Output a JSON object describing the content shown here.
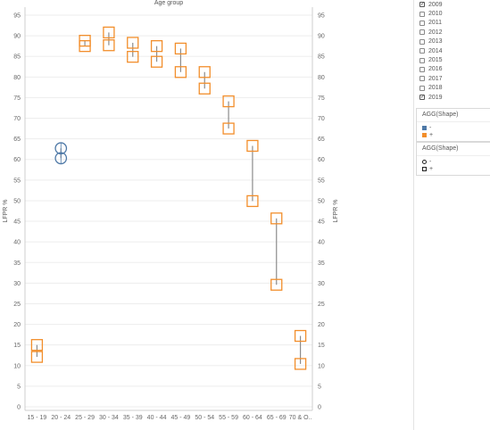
{
  "chart_data": {
    "type": "scatter",
    "title": "Age group",
    "ylabel": "LFPR %",
    "ylabel_right": "LFPR %",
    "ylim": [
      0,
      95
    ],
    "yticks": [
      0,
      5,
      10,
      15,
      20,
      25,
      30,
      35,
      40,
      45,
      50,
      55,
      60,
      65,
      70,
      75,
      80,
      85,
      90,
      95
    ],
    "categories": [
      "15 - 19",
      "20 - 24",
      "25 - 29",
      "30 - 34",
      "35 - 39",
      "40 - 44",
      "45 - 49",
      "50 - 54",
      "55 - 59",
      "60 - 64",
      "65 - 69",
      "70 & O.."
    ],
    "series": [
      {
        "shape": "circle",
        "color": "#4e79a7",
        "points": [
          {
            "category": "20 - 24",
            "y": 62.7
          },
          {
            "category": "20 - 24",
            "y": 60.3
          }
        ]
      },
      {
        "shape": "square",
        "color": "#f28e2b",
        "points": [
          {
            "category": "15 - 19",
            "y": 15.0
          },
          {
            "category": "15 - 19",
            "y": 12.1
          },
          {
            "category": "25 - 29",
            "y": 88.8
          },
          {
            "category": "25 - 29",
            "y": 87.5
          },
          {
            "category": "30 - 34",
            "y": 90.8
          },
          {
            "category": "30 - 34",
            "y": 87.7
          },
          {
            "category": "35 - 39",
            "y": 88.3
          },
          {
            "category": "35 - 39",
            "y": 84.9
          },
          {
            "category": "40 - 44",
            "y": 87.5
          },
          {
            "category": "40 - 44",
            "y": 83.7
          },
          {
            "category": "45 - 49",
            "y": 86.9
          },
          {
            "category": "45 - 49",
            "y": 81.2
          },
          {
            "category": "50 - 54",
            "y": 81.2
          },
          {
            "category": "50 - 54",
            "y": 77.2
          },
          {
            "category": "55 - 59",
            "y": 74.1
          },
          {
            "category": "55 - 59",
            "y": 67.5
          },
          {
            "category": "60 - 64",
            "y": 63.3
          },
          {
            "category": "60 - 64",
            "y": 49.9
          },
          {
            "category": "65 - 69",
            "y": 45.7
          },
          {
            "category": "65 - 69",
            "y": 29.6
          },
          {
            "category": "70 & O..",
            "y": 17.2
          },
          {
            "category": "70 & O..",
            "y": 10.4
          }
        ]
      }
    ],
    "grid": true
  },
  "year_filter": [
    {
      "label": "2009",
      "checked": true
    },
    {
      "label": "2010",
      "checked": false
    },
    {
      "label": "2011",
      "checked": false
    },
    {
      "label": "2012",
      "checked": false
    },
    {
      "label": "2013",
      "checked": false
    },
    {
      "label": "2014",
      "checked": false
    },
    {
      "label": "2015",
      "checked": false
    },
    {
      "label": "2016",
      "checked": false
    },
    {
      "label": "2017",
      "checked": false
    },
    {
      "label": "2018",
      "checked": false
    },
    {
      "label": "2019",
      "checked": true
    }
  ],
  "color_legend": {
    "title": "AGG(Shape)",
    "items": [
      {
        "label": "-",
        "color": "#4e79a7"
      },
      {
        "label": "+",
        "color": "#f28e2b"
      }
    ]
  },
  "shape_legend": {
    "title": "AGG(Shape)",
    "items": [
      {
        "label": "-",
        "shape": "circle"
      },
      {
        "label": "+",
        "shape": "square"
      }
    ]
  }
}
